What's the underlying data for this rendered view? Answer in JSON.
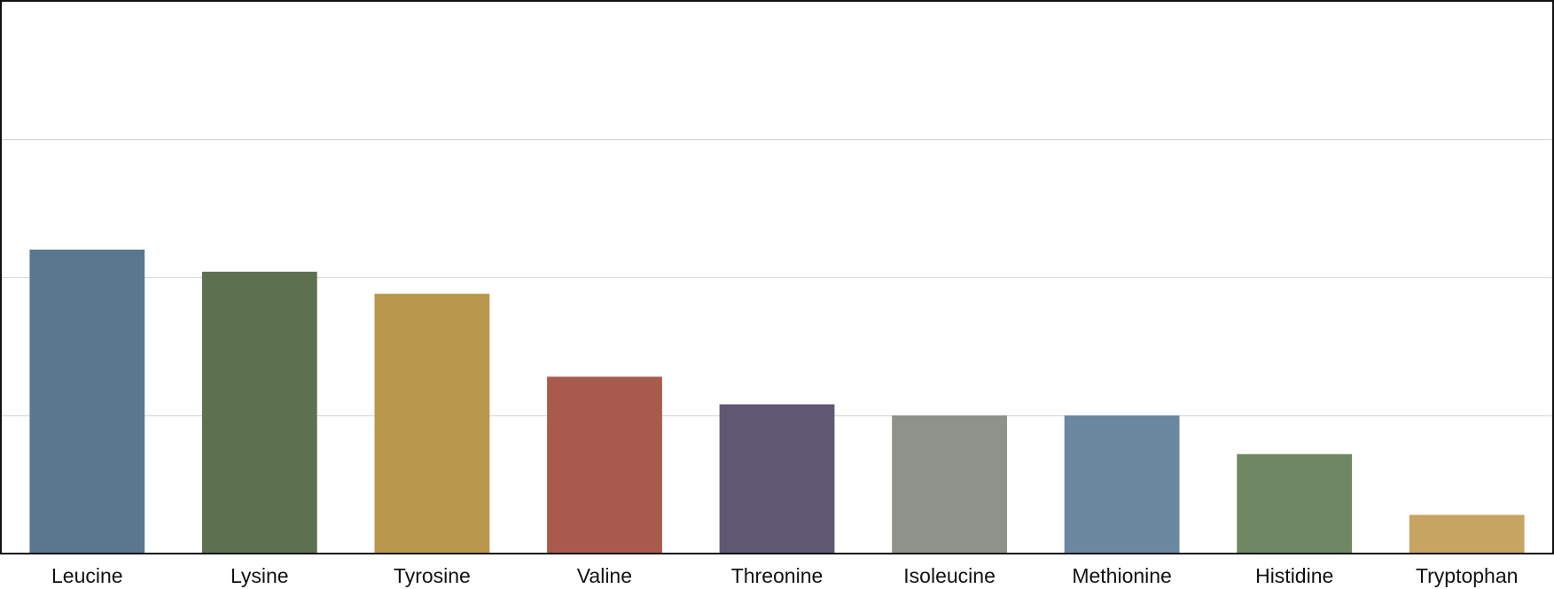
{
  "chart_data": {
    "type": "bar",
    "title": "",
    "xlabel": "",
    "ylabel": "",
    "categories": [
      "Leucine",
      "Lysine",
      "Tyrosine",
      "Valine",
      "Threonine",
      "Isoleucine",
      "Methionine",
      "Histidine",
      "Tryptophan"
    ],
    "values": [
      5.5,
      5.1,
      4.7,
      3.2,
      2.7,
      2.5,
      2.5,
      1.8,
      0.7
    ],
    "colors": [
      "#59778f",
      "#5b7150",
      "#b9974d",
      "#a85b4d",
      "#605873",
      "#8e928b",
      "#6b88a1",
      "#6f8763",
      "#c8a463"
    ],
    "ylim": [
      0,
      10
    ],
    "yticks": [
      0,
      2.5,
      5,
      7.5,
      10
    ],
    "grid": true,
    "legend": "none"
  }
}
